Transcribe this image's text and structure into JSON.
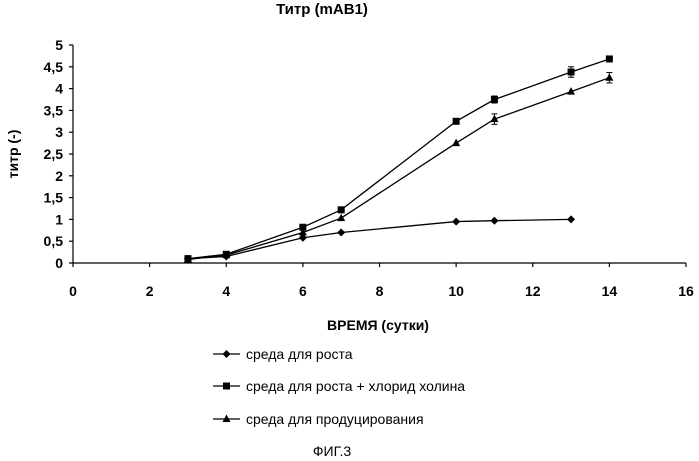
{
  "chart_data": {
    "type": "line",
    "title": "Титр (mAB1)",
    "xlabel": "ВРЕМЯ (сутки)",
    "ylabel": "титр (-)",
    "xlim": [
      0,
      16
    ],
    "ylim": [
      0,
      5
    ],
    "xticks": [
      0,
      2,
      4,
      6,
      8,
      10,
      12,
      14,
      16
    ],
    "yticks": [
      0,
      0.5,
      1,
      1.5,
      2,
      2.5,
      3,
      3.5,
      4,
      4.5,
      5
    ],
    "ytick_labels": [
      "0",
      "0,5",
      "1",
      "1,5",
      "2",
      "2,5",
      "3",
      "3,5",
      "4",
      "4,5",
      "5"
    ],
    "grid": false,
    "legend_position": "bottom",
    "series": [
      {
        "name": "среда для роста",
        "marker": "diamond",
        "x": [
          3,
          4,
          6,
          7,
          10,
          11,
          13
        ],
        "y": [
          0.1,
          0.15,
          0.58,
          0.7,
          0.95,
          0.97,
          1.0
        ],
        "err": [
          0,
          0,
          0,
          0,
          0,
          0,
          0
        ]
      },
      {
        "name": "среда для роста + хлорид холина",
        "marker": "square",
        "x": [
          3,
          4,
          6,
          7,
          10,
          11,
          13,
          14
        ],
        "y": [
          0.1,
          0.2,
          0.82,
          1.22,
          3.25,
          3.75,
          4.38,
          4.68
        ],
        "err": [
          0,
          0,
          0,
          0,
          0,
          0.08,
          0.12,
          0
        ]
      },
      {
        "name": "среда для продуцирования",
        "marker": "triangle",
        "x": [
          3,
          4,
          6,
          7,
          10,
          11,
          13,
          14
        ],
        "y": [
          0.08,
          0.18,
          0.7,
          1.03,
          2.75,
          3.3,
          3.93,
          4.25
        ],
        "err": [
          0,
          0,
          0,
          0,
          0,
          0.12,
          0,
          0.12
        ]
      }
    ]
  },
  "figure_label": "ФИГ.3"
}
